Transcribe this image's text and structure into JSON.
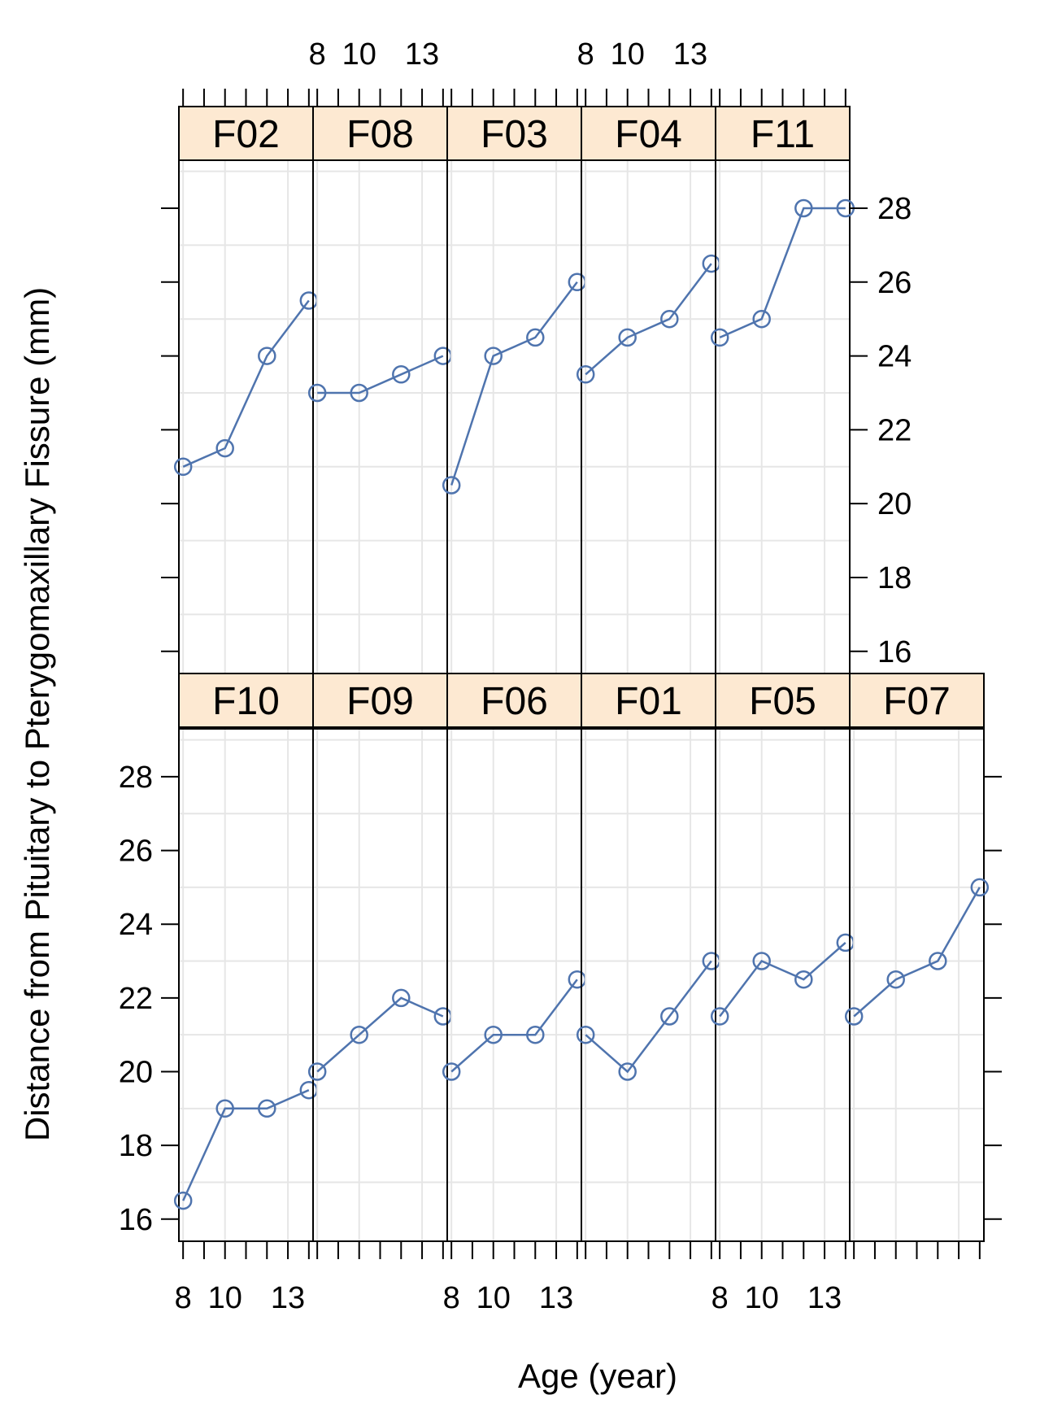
{
  "chart_data": {
    "type": "line",
    "xlabel": "Age (year)",
    "ylabel": "Distance from Pituitary to Pterygomaxillary Fissure (mm)",
    "x": [
      8,
      10,
      12,
      14
    ],
    "x_ticks": [
      8,
      10,
      13
    ],
    "x_tick_labels": [
      "8",
      "10",
      "13"
    ],
    "x_minor_ticks": [
      8,
      9,
      10,
      11,
      12,
      13,
      14
    ],
    "xlim": [
      7.8,
      14.2
    ],
    "y_ticks": [
      16,
      18,
      20,
      22,
      24,
      26,
      28
    ],
    "y_tick_labels": [
      "16",
      "18",
      "20",
      "22",
      "24",
      "26",
      "28"
    ],
    "ylim": [
      15.4,
      29.3
    ],
    "grid": true,
    "marker": "open-circle",
    "colors": {
      "line": "#4f74ae",
      "strip": "#fde9d2",
      "grid": "#e6e6e6",
      "frame": "#000000"
    },
    "panels": [
      {
        "name": "F10",
        "values": [
          16.5,
          19.0,
          19.0,
          19.5
        ]
      },
      {
        "name": "F09",
        "values": [
          20.0,
          21.0,
          22.0,
          21.5
        ]
      },
      {
        "name": "F06",
        "values": [
          20.0,
          21.0,
          21.0,
          22.5
        ]
      },
      {
        "name": "F01",
        "values": [
          21.0,
          20.0,
          21.5,
          23.0
        ]
      },
      {
        "name": "F05",
        "values": [
          21.5,
          23.0,
          22.5,
          23.5
        ]
      },
      {
        "name": "F07",
        "values": [
          21.5,
          22.5,
          23.0,
          25.0
        ]
      },
      {
        "name": "F02",
        "values": [
          21.0,
          21.5,
          24.0,
          25.5
        ]
      },
      {
        "name": "F08",
        "values": [
          23.0,
          23.0,
          23.5,
          24.0
        ]
      },
      {
        "name": "F03",
        "values": [
          20.5,
          24.0,
          24.5,
          26.0
        ]
      },
      {
        "name": "F04",
        "values": [
          23.5,
          24.5,
          25.0,
          26.5
        ]
      },
      {
        "name": "F11",
        "values": [
          24.5,
          25.0,
          28.0,
          28.0
        ]
      }
    ]
  }
}
